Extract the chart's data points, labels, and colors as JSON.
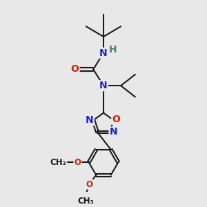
{
  "bg_color": "#e8e8e8",
  "bond_color": "#1a1a1a",
  "bond_width": 1.5,
  "atom_colors": {
    "N": "#2222cc",
    "O": "#cc2200",
    "C": "#1a1a1a",
    "H": "#4a8080"
  },
  "font_size": 10,
  "font_size_small": 8.5
}
